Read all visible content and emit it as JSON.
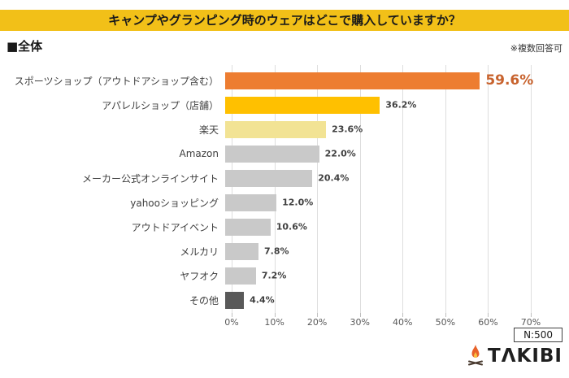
{
  "header": {
    "title": "キャンプやグランピング時のウェアはどこで購入していますか？",
    "group_label": "■全体",
    "note": "※複数回答可"
  },
  "chart_data": {
    "type": "bar",
    "orientation": "horizontal",
    "title": "キャンプやグランピング時のウェアはどこで購入していますか？",
    "categories": [
      "スポーツショップ（アウトドアショップ含む）",
      "アパレルショップ（店舗）",
      "楽天",
      "Amazon",
      "メーカー公式オンラインサイト",
      "yahooショッピング",
      "アウトドアイベント",
      "メルカリ",
      "ヤフオク",
      "その他"
    ],
    "values": [
      59.6,
      36.2,
      23.6,
      22.0,
      20.4,
      12.0,
      10.6,
      7.8,
      7.2,
      4.4
    ],
    "value_labels": [
      "59.6%",
      "36.2%",
      "23.6%",
      "22.0%",
      "20.4%",
      "12.0%",
      "10.6%",
      "7.8%",
      "7.2%",
      "4.4%"
    ],
    "bar_colors": [
      "#ED7D31",
      "#FFC000",
      "#F2E394",
      "#C9C9C9",
      "#C9C9C9",
      "#C9C9C9",
      "#C9C9C9",
      "#C9C9C9",
      "#C9C9C9",
      "#595959"
    ],
    "highlight_index": 0,
    "highlight_value_color": "#C8632E",
    "value_color": "#404040",
    "xlim": [
      0,
      70
    ],
    "x_ticks": [
      "0%",
      "10%",
      "20%",
      "30%",
      "40%",
      "50%",
      "60%",
      "70%"
    ],
    "grid": true,
    "legend": "none"
  },
  "footer": {
    "sample_size": "N:500",
    "logo_text": "TAKIBI"
  },
  "colors": {
    "banner": "#F2C018",
    "grid": "#DEDEDE",
    "tick_label": "#595959"
  }
}
